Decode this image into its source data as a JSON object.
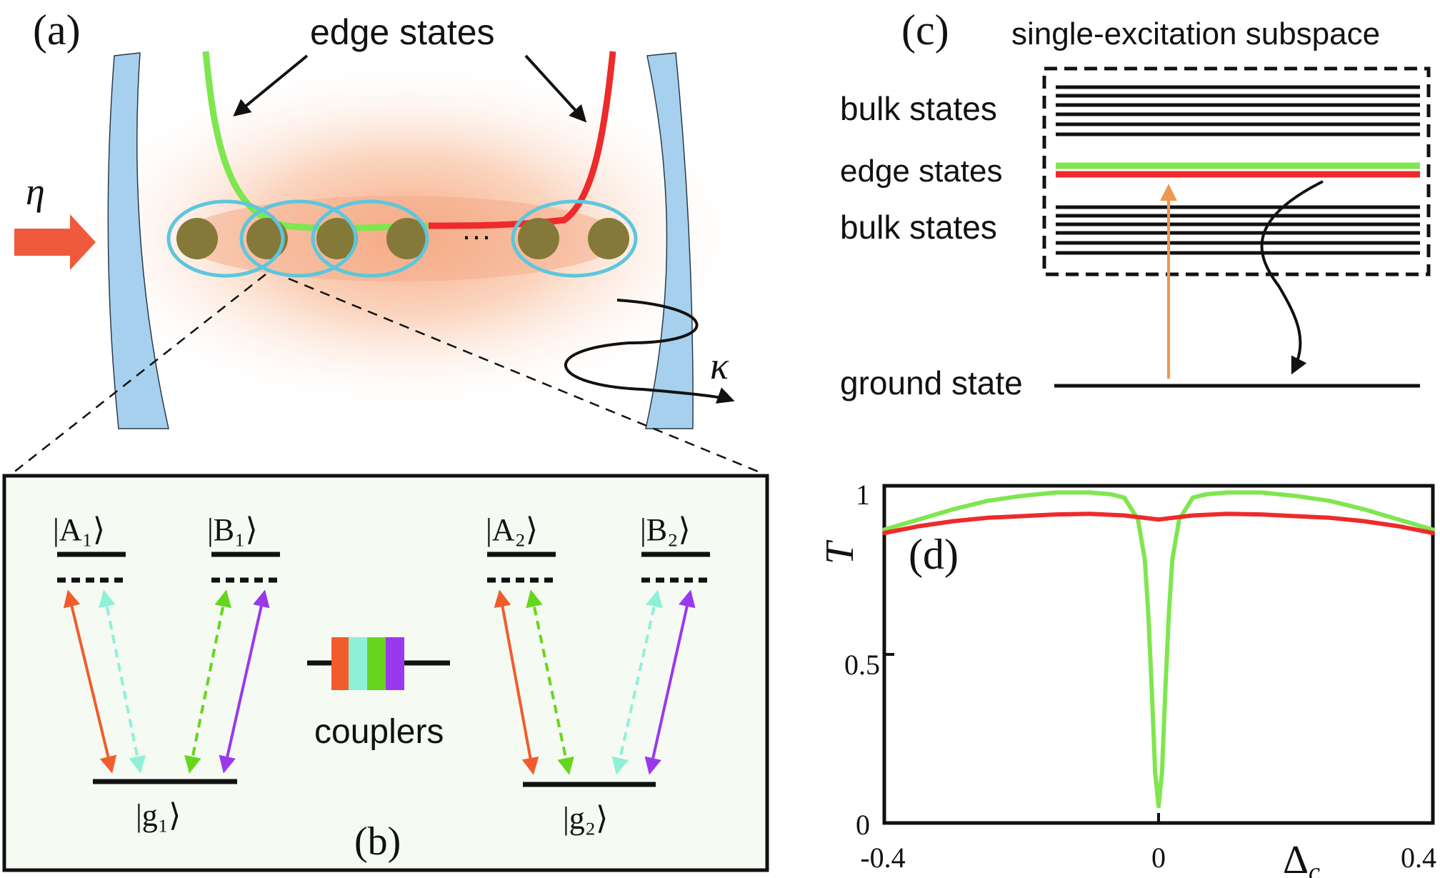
{
  "panel_a": {
    "label": "(a)",
    "edge_states_label": "edge states",
    "drive_symbol": "η",
    "decay_symbol": "κ",
    "ellipsis": "···"
  },
  "panel_b": {
    "label": "(b)",
    "level_A1": "|A₁⟩",
    "level_B1": "|B₁⟩",
    "level_g1": "|g₁⟩",
    "level_A2": "|A₂⟩",
    "level_B2": "|B₂⟩",
    "level_g2": "|g₂⟩",
    "couplers_label": "couplers"
  },
  "panel_c": {
    "label": "(c)",
    "title": "single-excitation subspace",
    "bulk_upper": "bulk states",
    "edge": "edge states",
    "bulk_lower": "bulk states",
    "ground": "ground state"
  },
  "colors": {
    "green": "#7ee64f",
    "red": "#ee2a2a",
    "orange_red": "#f25c2c",
    "aqua": "#8ff0d8",
    "lime": "#66d61c",
    "purple": "#9a38f0",
    "mirror": "#a6d0ee",
    "atom": "#85793a",
    "ellipse": "#5dc6dd",
    "panel_b_bg": "#f5faf3",
    "orange_arrow": "#f0954e"
  },
  "chart_data": {
    "type": "line",
    "label": "(d)",
    "xlabel": "Δ",
    "xlabel_sub": "c",
    "ylabel": "T",
    "xlim": [
      -0.4,
      0.4
    ],
    "ylim": [
      0,
      1
    ],
    "xticks": [
      "-0.4",
      "0",
      "0.4"
    ],
    "yticks": [
      "0",
      "0.5",
      "1"
    ],
    "series": [
      {
        "color": "#7ee64f",
        "x": [
          -0.4,
          -0.35,
          -0.3,
          -0.25,
          -0.2,
          -0.15,
          -0.1,
          -0.07,
          -0.05,
          -0.03,
          -0.02,
          -0.015,
          -0.01,
          -0.005,
          0,
          0.005,
          0.01,
          0.015,
          0.02,
          0.03,
          0.05,
          0.07,
          0.1,
          0.15,
          0.2,
          0.25,
          0.3,
          0.35,
          0.4
        ],
        "y": [
          0.87,
          0.9,
          0.93,
          0.955,
          0.97,
          0.98,
          0.98,
          0.975,
          0.965,
          0.9,
          0.78,
          0.62,
          0.4,
          0.15,
          0.05,
          0.15,
          0.4,
          0.62,
          0.78,
          0.9,
          0.965,
          0.975,
          0.98,
          0.98,
          0.97,
          0.955,
          0.93,
          0.9,
          0.87
        ]
      },
      {
        "color": "#ee2a2a",
        "x": [
          -0.4,
          -0.35,
          -0.3,
          -0.25,
          -0.2,
          -0.15,
          -0.1,
          -0.05,
          0,
          0.05,
          0.1,
          0.15,
          0.2,
          0.25,
          0.3,
          0.35,
          0.4
        ],
        "y": [
          0.86,
          0.88,
          0.895,
          0.905,
          0.91,
          0.915,
          0.917,
          0.912,
          0.9,
          0.912,
          0.917,
          0.915,
          0.91,
          0.905,
          0.895,
          0.88,
          0.86
        ]
      }
    ]
  }
}
